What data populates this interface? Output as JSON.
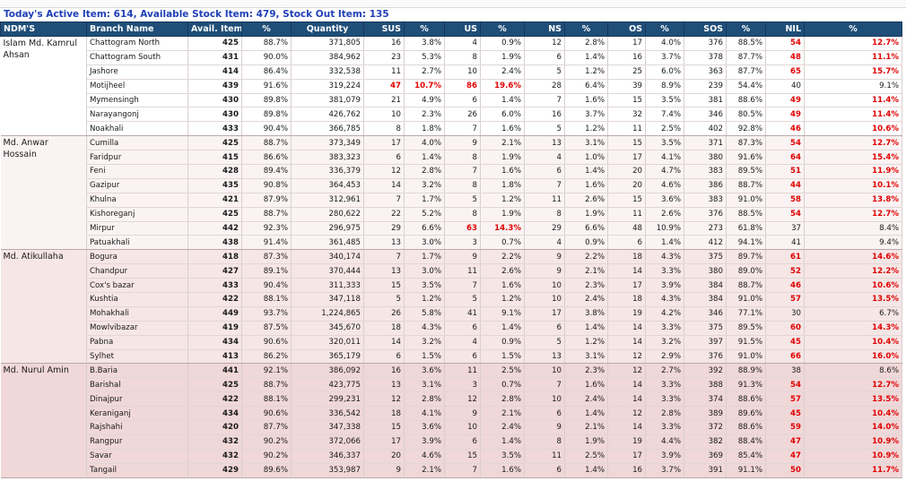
{
  "title": "Today's Active Item: 614, Available Stock Item: 479, Stock Out Item: 135",
  "headers": [
    "NDM'S",
    "Branch Name",
    "Avail. Item",
    "%",
    "Quantity",
    "SUS",
    "%",
    "US",
    "%",
    "NS",
    "%",
    "OS",
    "%",
    "SOS",
    "%",
    "NIL",
    "%"
  ],
  "colors": {
    "header_bg": "#1f4e78",
    "title": "#1f3fb6",
    "highlight": "#e00000"
  },
  "groups": [
    {
      "ndm": "Islam Md. Kamrul Ahsan",
      "rows": [
        {
          "branch": "Chattogram North",
          "vals": [
            "425",
            "88.7%",
            "371,805",
            "16",
            "3.8%",
            "4",
            "0.9%",
            "12",
            "2.8%",
            "17",
            "4.0%",
            "376",
            "88.5%",
            "54",
            "12.7%"
          ],
          "red": [
            13,
            14
          ]
        },
        {
          "branch": "Chattogram South",
          "vals": [
            "431",
            "90.0%",
            "384,962",
            "23",
            "5.3%",
            "8",
            "1.9%",
            "6",
            "1.4%",
            "16",
            "3.7%",
            "378",
            "87.7%",
            "48",
            "11.1%"
          ],
          "red": [
            13,
            14
          ]
        },
        {
          "branch": "Jashore",
          "vals": [
            "414",
            "86.4%",
            "332,538",
            "11",
            "2.7%",
            "10",
            "2.4%",
            "5",
            "1.2%",
            "25",
            "6.0%",
            "363",
            "87.7%",
            "65",
            "15.7%"
          ],
          "red": [
            13,
            14
          ]
        },
        {
          "branch": "Motijheel",
          "vals": [
            "439",
            "91.6%",
            "319,224",
            "47",
            "10.7%",
            "86",
            "19.6%",
            "28",
            "6.4%",
            "39",
            "8.9%",
            "239",
            "54.4%",
            "40",
            "9.1%"
          ],
          "red": [
            3,
            4,
            5,
            6
          ]
        },
        {
          "branch": "Mymensingh",
          "vals": [
            "430",
            "89.8%",
            "381,079",
            "21",
            "4.9%",
            "6",
            "1.4%",
            "7",
            "1.6%",
            "15",
            "3.5%",
            "381",
            "88.6%",
            "49",
            "11.4%"
          ],
          "red": [
            13,
            14
          ]
        },
        {
          "branch": "Narayangonj",
          "vals": [
            "430",
            "89.8%",
            "426,762",
            "10",
            "2.3%",
            "26",
            "6.0%",
            "16",
            "3.7%",
            "32",
            "7.4%",
            "346",
            "80.5%",
            "49",
            "11.4%"
          ],
          "red": [
            13,
            14
          ]
        },
        {
          "branch": "Noakhali",
          "vals": [
            "433",
            "90.4%",
            "366,785",
            "8",
            "1.8%",
            "7",
            "1.6%",
            "5",
            "1.2%",
            "11",
            "2.5%",
            "402",
            "92.8%",
            "46",
            "10.6%"
          ],
          "red": [
            13,
            14
          ]
        }
      ]
    },
    {
      "ndm": "Md. Anwar Hossain",
      "rows": [
        {
          "branch": "Cumilla",
          "vals": [
            "425",
            "88.7%",
            "373,349",
            "17",
            "4.0%",
            "9",
            "2.1%",
            "13",
            "3.1%",
            "15",
            "3.5%",
            "371",
            "87.3%",
            "54",
            "12.7%"
          ],
          "red": [
            13,
            14
          ]
        },
        {
          "branch": "Faridpur",
          "vals": [
            "415",
            "86.6%",
            "383,323",
            "6",
            "1.4%",
            "8",
            "1.9%",
            "4",
            "1.0%",
            "17",
            "4.1%",
            "380",
            "91.6%",
            "64",
            "15.4%"
          ],
          "red": [
            13,
            14
          ]
        },
        {
          "branch": "Feni",
          "vals": [
            "428",
            "89.4%",
            "336,379",
            "12",
            "2.8%",
            "7",
            "1.6%",
            "6",
            "1.4%",
            "20",
            "4.7%",
            "383",
            "89.5%",
            "51",
            "11.9%"
          ],
          "red": [
            13,
            14
          ]
        },
        {
          "branch": "Gazipur",
          "vals": [
            "435",
            "90.8%",
            "364,453",
            "14",
            "3.2%",
            "8",
            "1.8%",
            "7",
            "1.6%",
            "20",
            "4.6%",
            "386",
            "88.7%",
            "44",
            "10.1%"
          ],
          "red": [
            13,
            14
          ]
        },
        {
          "branch": "Khulna",
          "vals": [
            "421",
            "87.9%",
            "312,961",
            "7",
            "1.7%",
            "5",
            "1.2%",
            "11",
            "2.6%",
            "15",
            "3.6%",
            "383",
            "91.0%",
            "58",
            "13.8%"
          ],
          "red": [
            13,
            14
          ]
        },
        {
          "branch": "Kishoreganj",
          "vals": [
            "425",
            "88.7%",
            "280,622",
            "22",
            "5.2%",
            "8",
            "1.9%",
            "8",
            "1.9%",
            "11",
            "2.6%",
            "376",
            "88.5%",
            "54",
            "12.7%"
          ],
          "red": [
            13,
            14
          ]
        },
        {
          "branch": "Mirpur",
          "vals": [
            "442",
            "92.3%",
            "296,975",
            "29",
            "6.6%",
            "63",
            "14.3%",
            "29",
            "6.6%",
            "48",
            "10.9%",
            "273",
            "61.8%",
            "37",
            "8.4%"
          ],
          "red": [
            5,
            6
          ]
        },
        {
          "branch": "Patuakhali",
          "vals": [
            "438",
            "91.4%",
            "361,485",
            "13",
            "3.0%",
            "3",
            "0.7%",
            "4",
            "0.9%",
            "6",
            "1.4%",
            "412",
            "94.1%",
            "41",
            "9.4%"
          ],
          "red": []
        }
      ]
    },
    {
      "ndm": "Md. Atikullaha",
      "rows": [
        {
          "branch": "Bogura",
          "vals": [
            "418",
            "87.3%",
            "340,174",
            "7",
            "1.7%",
            "9",
            "2.2%",
            "9",
            "2.2%",
            "18",
            "4.3%",
            "375",
            "89.7%",
            "61",
            "14.6%"
          ],
          "red": [
            13,
            14
          ]
        },
        {
          "branch": "Chandpur",
          "vals": [
            "427",
            "89.1%",
            "370,444",
            "13",
            "3.0%",
            "11",
            "2.6%",
            "9",
            "2.1%",
            "14",
            "3.3%",
            "380",
            "89.0%",
            "52",
            "12.2%"
          ],
          "red": [
            13,
            14
          ]
        },
        {
          "branch": "Cox's bazar",
          "vals": [
            "433",
            "90.4%",
            "311,333",
            "15",
            "3.5%",
            "7",
            "1.6%",
            "10",
            "2.3%",
            "17",
            "3.9%",
            "384",
            "88.7%",
            "46",
            "10.6%"
          ],
          "red": [
            13,
            14
          ]
        },
        {
          "branch": "Kushtia",
          "vals": [
            "422",
            "88.1%",
            "347,118",
            "5",
            "1.2%",
            "5",
            "1.2%",
            "10",
            "2.4%",
            "18",
            "4.3%",
            "384",
            "91.0%",
            "57",
            "13.5%"
          ],
          "red": [
            13,
            14
          ]
        },
        {
          "branch": "Mohakhali",
          "vals": [
            "449",
            "93.7%",
            "1,224,865",
            "26",
            "5.8%",
            "41",
            "9.1%",
            "17",
            "3.8%",
            "19",
            "4.2%",
            "346",
            "77.1%",
            "30",
            "6.7%"
          ],
          "red": []
        },
        {
          "branch": "Mowlvibazar",
          "vals": [
            "419",
            "87.5%",
            "345,670",
            "18",
            "4.3%",
            "6",
            "1.4%",
            "6",
            "1.4%",
            "14",
            "3.3%",
            "375",
            "89.5%",
            "60",
            "14.3%"
          ],
          "red": [
            13,
            14
          ]
        },
        {
          "branch": "Pabna",
          "vals": [
            "434",
            "90.6%",
            "320,011",
            "14",
            "3.2%",
            "4",
            "0.9%",
            "5",
            "1.2%",
            "14",
            "3.2%",
            "397",
            "91.5%",
            "45",
            "10.4%"
          ],
          "red": [
            13,
            14
          ]
        },
        {
          "branch": "Sylhet",
          "vals": [
            "413",
            "86.2%",
            "365,179",
            "6",
            "1.5%",
            "6",
            "1.5%",
            "13",
            "3.1%",
            "12",
            "2.9%",
            "376",
            "91.0%",
            "66",
            "16.0%"
          ],
          "red": [
            13,
            14
          ]
        }
      ]
    },
    {
      "ndm": "Md. Nurul Amin",
      "rows": [
        {
          "branch": "B.Baria",
          "vals": [
            "441",
            "92.1%",
            "386,092",
            "16",
            "3.6%",
            "11",
            "2.5%",
            "10",
            "2.3%",
            "12",
            "2.7%",
            "392",
            "88.9%",
            "38",
            "8.6%"
          ],
          "red": []
        },
        {
          "branch": "Barishal",
          "vals": [
            "425",
            "88.7%",
            "423,775",
            "13",
            "3.1%",
            "3",
            "0.7%",
            "7",
            "1.6%",
            "14",
            "3.3%",
            "388",
            "91.3%",
            "54",
            "12.7%"
          ],
          "red": [
            13,
            14
          ]
        },
        {
          "branch": "Dinajpur",
          "vals": [
            "422",
            "88.1%",
            "299,231",
            "12",
            "2.8%",
            "12",
            "2.8%",
            "10",
            "2.4%",
            "14",
            "3.3%",
            "374",
            "88.6%",
            "57",
            "13.5%"
          ],
          "red": [
            13,
            14
          ]
        },
        {
          "branch": "Keraniganj",
          "vals": [
            "434",
            "90.6%",
            "336,542",
            "18",
            "4.1%",
            "9",
            "2.1%",
            "6",
            "1.4%",
            "12",
            "2.8%",
            "389",
            "89.6%",
            "45",
            "10.4%"
          ],
          "red": [
            13,
            14
          ]
        },
        {
          "branch": "Rajshahi",
          "vals": [
            "420",
            "87.7%",
            "347,338",
            "15",
            "3.6%",
            "10",
            "2.4%",
            "9",
            "2.1%",
            "14",
            "3.3%",
            "372",
            "88.6%",
            "59",
            "14.0%"
          ],
          "red": [
            13,
            14
          ]
        },
        {
          "branch": "Rangpur",
          "vals": [
            "432",
            "90.2%",
            "372,066",
            "17",
            "3.9%",
            "6",
            "1.4%",
            "8",
            "1.9%",
            "19",
            "4.4%",
            "382",
            "88.4%",
            "47",
            "10.9%"
          ],
          "red": [
            13,
            14
          ]
        },
        {
          "branch": "Savar",
          "vals": [
            "432",
            "90.2%",
            "346,337",
            "20",
            "4.6%",
            "15",
            "3.5%",
            "11",
            "2.5%",
            "17",
            "3.9%",
            "369",
            "85.4%",
            "47",
            "10.9%"
          ],
          "red": [
            13,
            14
          ]
        },
        {
          "branch": "Tangail",
          "vals": [
            "429",
            "89.6%",
            "353,987",
            "9",
            "2.1%",
            "7",
            "1.6%",
            "6",
            "1.4%",
            "16",
            "3.7%",
            "391",
            "91.1%",
            "50",
            "11.7%"
          ],
          "red": [
            13,
            14
          ]
        }
      ]
    }
  ]
}
